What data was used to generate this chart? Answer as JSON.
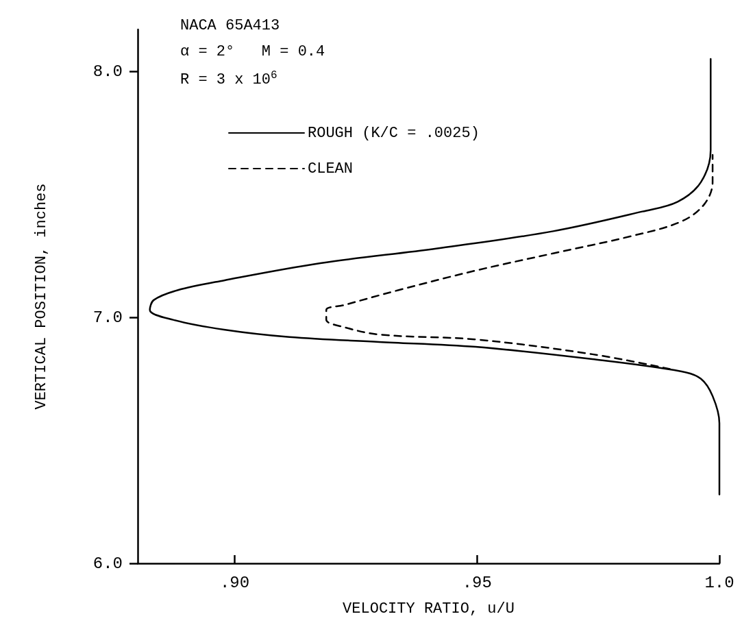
{
  "chart_data": {
    "type": "line",
    "annotations": [
      "NACA 65A413",
      "α = 2°   M = 0.4",
      "R = 3 x 10$^{6}$"
    ],
    "xlabel": "VELOCITY RATIO, u/U",
    "ylabel": "VERTICAL POSITION, inches",
    "xlim": [
      0.88,
      1.0
    ],
    "xticks": [
      {
        "value": 0.9,
        "label": ".90"
      },
      {
        "value": 0.95,
        "label": ".95"
      },
      {
        "value": 1.0,
        "label": "1.0"
      }
    ],
    "ylim": [
      6.0,
      8.17
    ],
    "yticks": [
      {
        "value": 6.0,
        "label": "6.0"
      },
      {
        "value": 7.0,
        "label": "7.0"
      },
      {
        "value": 8.0,
        "label": "8.0"
      }
    ],
    "grid": false,
    "legend": "top left",
    "marker": "none",
    "series": [
      {
        "name": "ROUGH (K/C = .0025)",
        "color": "#000000",
        "line_style": "solid",
        "x": [
          1.0,
          1.0,
          0.9986,
          0.9962,
          0.9922,
          0.9738,
          0.9497,
          0.9298,
          0.9113,
          0.8978,
          0.8873,
          0.8825,
          0.8833,
          0.8882,
          0.8978,
          0.9177,
          0.9418,
          0.9657,
          0.9841,
          0.9914,
          0.9962,
          0.9982,
          0.9982
        ],
        "values": [
          6.28,
          6.57,
          6.68,
          6.75,
          6.78,
          6.83,
          6.88,
          6.9,
          6.92,
          6.95,
          6.99,
          7.03,
          7.07,
          7.11,
          7.15,
          7.22,
          7.28,
          7.35,
          7.43,
          7.47,
          7.55,
          7.68,
          8.05
        ]
      },
      {
        "name": "CLEAN",
        "color": "#000000",
        "line_style": "dashed",
        "x": [
          0.9898,
          0.9738,
          0.9497,
          0.9298,
          0.9226,
          0.9189,
          0.9189,
          0.9226,
          0.9337,
          0.9497,
          0.9657,
          0.9818,
          0.9922,
          0.9969,
          0.9986,
          0.9986
        ],
        "values": [
          6.79,
          6.85,
          6.91,
          6.93,
          6.96,
          6.99,
          7.03,
          7.05,
          7.11,
          7.19,
          7.26,
          7.33,
          7.39,
          7.46,
          7.55,
          7.66
        ]
      }
    ]
  }
}
